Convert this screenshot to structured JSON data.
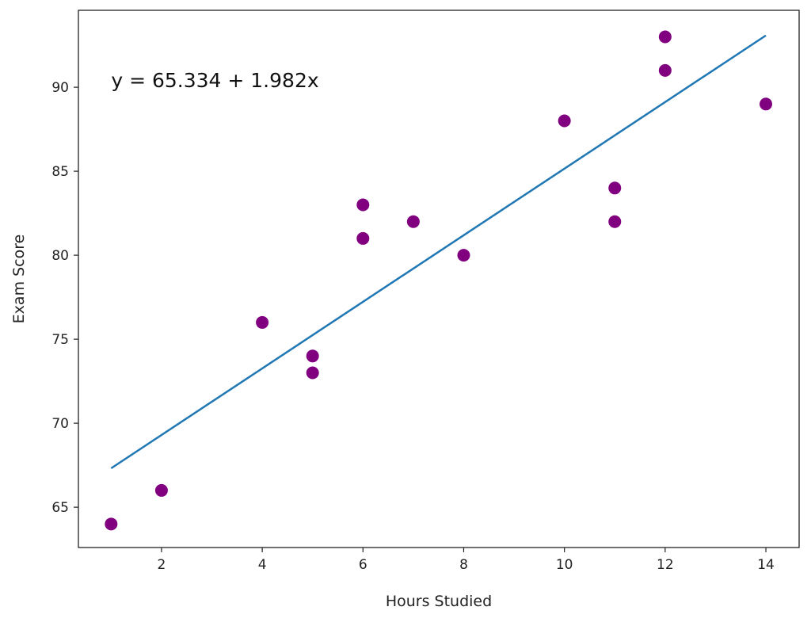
{
  "chart_data": {
    "type": "scatter",
    "title": "",
    "xlabel": "Hours Studied",
    "ylabel": "Exam Score",
    "xlim": [
      0.35,
      14.66
    ],
    "ylim": [
      62.6,
      94.58
    ],
    "xticks": [
      2,
      4,
      6,
      8,
      10,
      12,
      14
    ],
    "yticks": [
      65,
      70,
      75,
      80,
      85,
      90
    ],
    "grid": false,
    "points": {
      "color": "#800080",
      "x": [
        1,
        2,
        4,
        5,
        5,
        6,
        6,
        7,
        8,
        10,
        11,
        11,
        12,
        12,
        14
      ],
      "y": [
        64,
        66,
        76,
        74,
        73,
        83,
        81,
        82,
        80,
        88,
        84,
        82,
        93,
        91,
        89
      ]
    },
    "fit_line": {
      "type": "line",
      "color": "#1f77b4",
      "intercept": 65.334,
      "slope": 1.982,
      "x_range": [
        1,
        14
      ]
    },
    "annotation": {
      "text": "y = 65.334 + 1.982x",
      "x": 1,
      "y": 90
    }
  }
}
